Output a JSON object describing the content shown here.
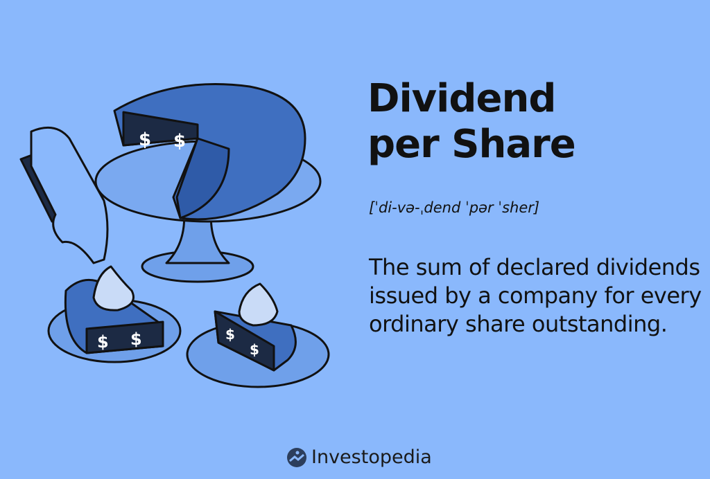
{
  "title_line1": "Dividend",
  "title_line2": "per Share",
  "pronunciation": "[ˈdi-və-ˌdend ˈpər ˈsher]",
  "definition": "The sum of declared dividends issued by a company for every ordinary share outstanding.",
  "brand": "Investopedia",
  "colors": {
    "background": "#8ab8fc",
    "plate": "#6fa0ea",
    "pie": "#3f6fc0",
    "pie_dark": "#2b4f8f",
    "filling": "#1c2a44",
    "cream": "#c9dbf7"
  }
}
